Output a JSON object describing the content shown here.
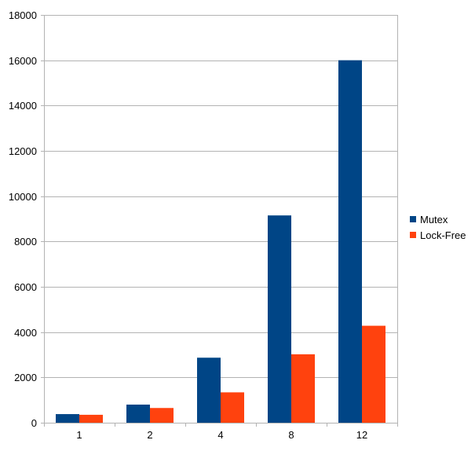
{
  "chart_data": {
    "type": "bar",
    "categories": [
      "1",
      "2",
      "4",
      "8",
      "12"
    ],
    "series": [
      {
        "name": "Mutex",
        "values": [
          380,
          800,
          2870,
          9150,
          16000
        ],
        "color": "#004586"
      },
      {
        "name": "Lock-Free",
        "values": [
          350,
          650,
          1340,
          3020,
          4280
        ],
        "color": "#ff420e"
      }
    ],
    "ylim": [
      0,
      18000
    ],
    "yticks": [
      "0",
      "2000",
      "4000",
      "6000",
      "8000",
      "10000",
      "12000",
      "14000",
      "16000",
      "18000"
    ],
    "grid": true,
    "legend_position": "right",
    "title": "",
    "xlabel": "",
    "ylabel": ""
  }
}
